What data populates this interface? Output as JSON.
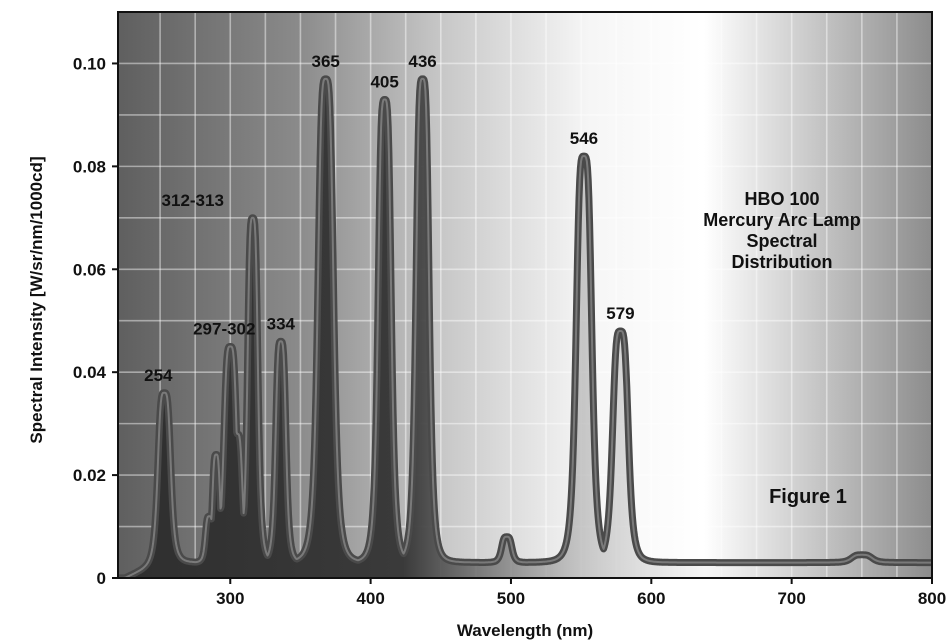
{
  "chart_data": {
    "type": "line",
    "xlabel": "Wavelength (nm)",
    "ylabel": "Spectral Intensity [W/sr/nm/1000cd]",
    "xlim": [
      220,
      800
    ],
    "ylim": [
      0,
      0.11
    ],
    "x_ticks": [
      300,
      400,
      500,
      600,
      700,
      800
    ],
    "y_ticks": [
      0,
      0.02,
      0.04,
      0.06,
      0.08,
      0.1
    ],
    "y_tick_labels": [
      "0",
      "0.02",
      "0.04",
      "0.06",
      "0.08",
      "0.10"
    ],
    "grid": true,
    "baseline": 0.003,
    "peaks": [
      {
        "label": "254",
        "x": 253,
        "y": 0.036
      },
      {
        "label": "297-302",
        "x": 300,
        "y": 0.045
      },
      {
        "label": "312-313",
        "x": 316,
        "y": 0.07
      },
      {
        "label": "334",
        "x": 336,
        "y": 0.046
      },
      {
        "label": "365",
        "x": 368,
        "y": 0.097
      },
      {
        "label": "405",
        "x": 410,
        "y": 0.093
      },
      {
        "label": "436",
        "x": 437,
        "y": 0.097
      },
      {
        "label": "546",
        "x": 552,
        "y": 0.082
      },
      {
        "label": "579",
        "x": 578,
        "y": 0.048
      }
    ],
    "minor_peaks": [
      {
        "x": 285,
        "y": 0.012
      },
      {
        "x": 290,
        "y": 0.024
      },
      {
        "x": 305,
        "y": 0.028
      },
      {
        "x": 497,
        "y": 0.008
      },
      {
        "x": 750,
        "y": 0.0045
      }
    ],
    "annotation": [
      "HBO 100",
      "Mercury Arc Lamp",
      "Spectral",
      "Distribution"
    ],
    "figure_label": "Figure 1"
  }
}
